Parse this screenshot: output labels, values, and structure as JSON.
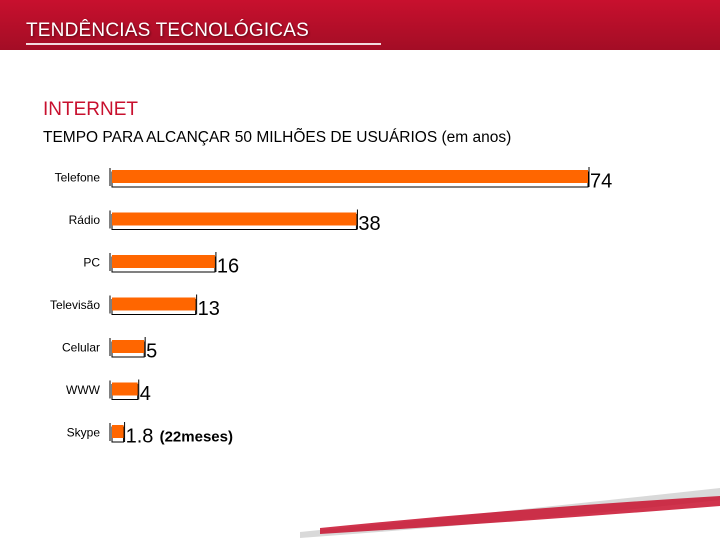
{
  "header": {
    "title": "TENDÊNCIAS TECNOLÓGICAS",
    "band_color": "#c8102e"
  },
  "section": {
    "title": "INTERNET",
    "subtitle": "TEMPO PARA ALCANÇAR 50 MILHÕES DE USUÁRIOS (em anos)"
  },
  "chart_data": {
    "type": "bar",
    "orientation": "horizontal",
    "title": "",
    "xlabel": "",
    "ylabel": "",
    "xlim": [
      0,
      74
    ],
    "grid": false,
    "legend": "none",
    "bar_color": "#ff6600",
    "categories": [
      "Telefone",
      "Rádio",
      "PC",
      "Televisão",
      "Celular",
      "WWW",
      "Skype"
    ],
    "values": [
      74,
      38,
      16,
      13,
      5,
      4,
      1.8
    ],
    "data_labels": [
      "74",
      "38",
      "16",
      "13",
      "5",
      "4",
      "1.8"
    ],
    "annotations": [
      "",
      "",
      "",
      "",
      "",
      "",
      "(22meses)"
    ]
  }
}
